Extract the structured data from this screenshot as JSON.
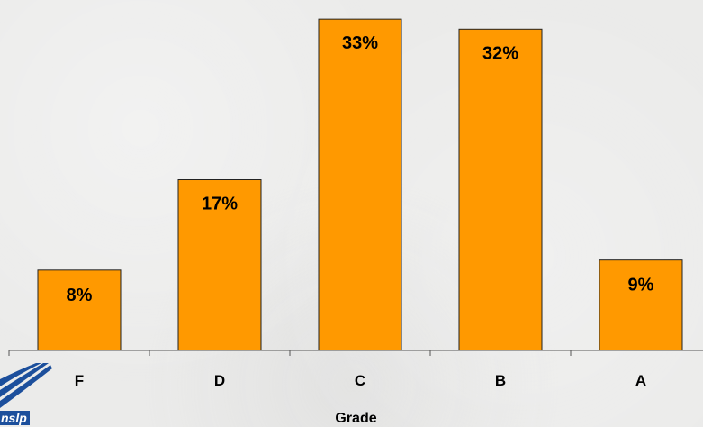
{
  "chart_data": {
    "type": "bar",
    "categories": [
      "F",
      "D",
      "C",
      "B",
      "A"
    ],
    "values": [
      8,
      17,
      33,
      32,
      9
    ],
    "value_labels": [
      "8%",
      "17%",
      "33%",
      "32%",
      "9%"
    ],
    "title": "",
    "xlabel": "Grade",
    "ylabel": "",
    "ylim": [
      0,
      34
    ],
    "grid": false,
    "legend": "none",
    "bar_color": "#ff9900"
  },
  "logo": {
    "text": "nslp",
    "color": "#1c4f9c"
  }
}
